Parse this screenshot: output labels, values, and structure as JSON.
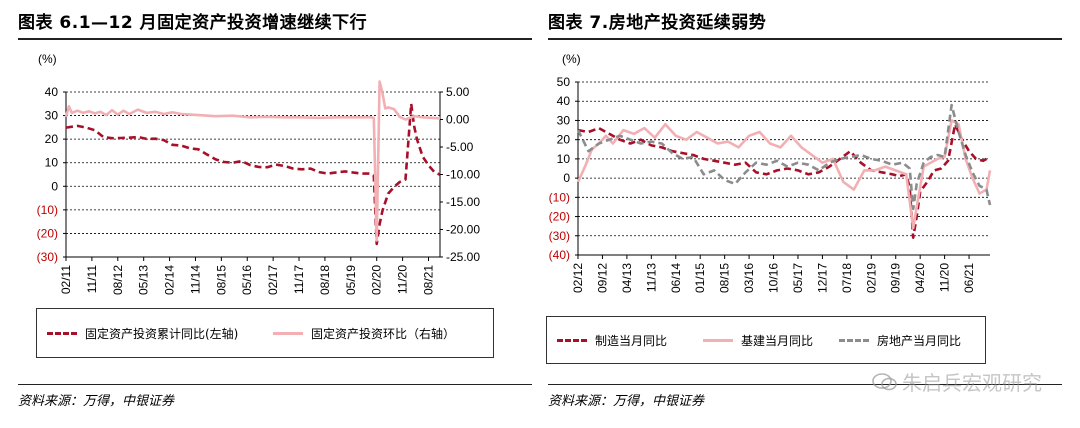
{
  "charts": {
    "left": {
      "title": "图表 6.1—12 月固定资产投资增速继续下行",
      "unit": "(%)",
      "left_axis_ticks": [
        "40",
        "30",
        "20",
        "10",
        "0",
        "(10)",
        "(20)",
        "(30)"
      ],
      "right_axis_ticks": [
        "5.00",
        "0.00",
        "-5.00",
        "-10.00",
        "-15.00",
        "-20.00",
        "-25.00"
      ],
      "x_ticks": [
        "02/11",
        "11/11",
        "08/12",
        "05/13",
        "02/14",
        "11/14",
        "08/15",
        "05/16",
        "02/17",
        "11/17",
        "08/18",
        "05/19",
        "02/20",
        "11/20",
        "08/21"
      ],
      "legend": {
        "cumulative": "固定资产投资累计同比(左轴)",
        "mom": "固定资产投资环比（右轴）"
      },
      "source": "资料来源：万得，中银证券"
    },
    "right": {
      "title": "图表 7.房地产投资延续弱势",
      "unit": "(%)",
      "left_axis_ticks": [
        "50",
        "40",
        "30",
        "20",
        "10",
        "0",
        "(10)",
        "(20)",
        "(30)",
        "(40)"
      ],
      "x_ticks": [
        "02/12",
        "09/12",
        "04/13",
        "11/13",
        "06/14",
        "01/15",
        "08/15",
        "03/16",
        "10/16",
        "05/17",
        "12/17",
        "07/18",
        "02/19",
        "09/19",
        "04/20",
        "11/20",
        "06/21"
      ],
      "legend": {
        "mfg": "制造当月同比",
        "infra": "基建当月同比",
        "realestate": "房地产当月同比"
      },
      "source": "资料来源：万得，中银证券"
    }
  },
  "watermark": "朱启兵宏观研究",
  "colors": {
    "dark_red": "#a8102a",
    "pink": "#f2b0b4",
    "gray": "#8c8c8c",
    "neg_label": "#c00000"
  },
  "chart_data": [
    {
      "type": "line",
      "title": "图表 6.1—12 月固定资产投资增速继续下行",
      "x_range": [
        "2011-02",
        "2021-12"
      ],
      "ylim_left": [
        -30,
        40
      ],
      "ylim_right": [
        -25,
        5
      ],
      "series": [
        {
          "name": "固定资产投资累计同比(左轴)",
          "axis": "left",
          "style": "dashed",
          "color": "#a8102a",
          "points": [
            [
              "2011-02",
              24.9
            ],
            [
              "2011-06",
              25.6
            ],
            [
              "2011-09",
              24.9
            ],
            [
              "2011-12",
              23.8
            ],
            [
              "2012-03",
              20.9
            ],
            [
              "2012-06",
              20.4
            ],
            [
              "2012-09",
              20.5
            ],
            [
              "2012-12",
              20.6
            ],
            [
              "2013-03",
              20.9
            ],
            [
              "2013-06",
              20.1
            ],
            [
              "2013-09",
              20.2
            ],
            [
              "2013-12",
              19.6
            ],
            [
              "2014-03",
              17.6
            ],
            [
              "2014-06",
              17.3
            ],
            [
              "2014-09",
              16.1
            ],
            [
              "2014-12",
              15.7
            ],
            [
              "2015-03",
              13.5
            ],
            [
              "2015-06",
              11.4
            ],
            [
              "2015-09",
              10.3
            ],
            [
              "2015-12",
              10.0
            ],
            [
              "2016-03",
              10.7
            ],
            [
              "2016-06",
              9.0
            ],
            [
              "2016-09",
              8.2
            ],
            [
              "2016-12",
              8.1
            ],
            [
              "2017-03",
              9.2
            ],
            [
              "2017-06",
              8.6
            ],
            [
              "2017-09",
              7.5
            ],
            [
              "2017-12",
              7.2
            ],
            [
              "2018-03",
              7.5
            ],
            [
              "2018-06",
              6.0
            ],
            [
              "2018-09",
              5.4
            ],
            [
              "2018-12",
              5.9
            ],
            [
              "2019-03",
              6.3
            ],
            [
              "2019-06",
              5.8
            ],
            [
              "2019-09",
              5.4
            ],
            [
              "2019-12",
              5.4
            ],
            [
              "2020-01",
              4.5
            ],
            [
              "2020-02",
              -24.5
            ],
            [
              "2020-03",
              -16.1
            ],
            [
              "2020-04",
              -10.3
            ],
            [
              "2020-06",
              -3.1
            ],
            [
              "2020-08",
              -0.3
            ],
            [
              "2020-10",
              1.8
            ],
            [
              "2020-12",
              2.9
            ],
            [
              "2021-02",
              35.0
            ],
            [
              "2021-03",
              25.6
            ],
            [
              "2021-04",
              19.9
            ],
            [
              "2021-06",
              12.6
            ],
            [
              "2021-08",
              8.9
            ],
            [
              "2021-10",
              6.1
            ],
            [
              "2021-12",
              4.9
            ]
          ]
        },
        {
          "name": "固定资产投资环比（右轴）",
          "axis": "right",
          "style": "solid",
          "color": "#f2b0b4",
          "points": [
            [
              "2011-02",
              0.5
            ],
            [
              "2011-03",
              2.4
            ],
            [
              "2011-04",
              1.2
            ],
            [
              "2011-06",
              1.6
            ],
            [
              "2011-08",
              1.2
            ],
            [
              "2011-10",
              1.5
            ],
            [
              "2011-12",
              1.1
            ],
            [
              "2012-02",
              1.4
            ],
            [
              "2012-04",
              0.8
            ],
            [
              "2012-06",
              1.7
            ],
            [
              "2012-08",
              0.9
            ],
            [
              "2012-10",
              1.6
            ],
            [
              "2012-12",
              1.0
            ],
            [
              "2013-03",
              1.8
            ],
            [
              "2013-06",
              1.2
            ],
            [
              "2013-09",
              1.4
            ],
            [
              "2013-12",
              1.0
            ],
            [
              "2014-03",
              1.3
            ],
            [
              "2014-06",
              1.0
            ],
            [
              "2014-09",
              0.9
            ],
            [
              "2014-12",
              0.8
            ],
            [
              "2015-06",
              0.6
            ],
            [
              "2015-12",
              0.7
            ],
            [
              "2016-06",
              0.4
            ],
            [
              "2016-12",
              0.5
            ],
            [
              "2017-06",
              0.4
            ],
            [
              "2017-12",
              0.4
            ],
            [
              "2018-06",
              0.3
            ],
            [
              "2018-12",
              0.4
            ],
            [
              "2019-06",
              0.4
            ],
            [
              "2019-12",
              0.4
            ],
            [
              "2020-01",
              0.3
            ],
            [
              "2020-02",
              -22.0
            ],
            [
              "2020-03",
              6.9
            ],
            [
              "2020-04",
              4.8
            ],
            [
              "2020-05",
              2.0
            ],
            [
              "2020-06",
              2.2
            ],
            [
              "2020-08",
              1.9
            ],
            [
              "2020-10",
              0.5
            ],
            [
              "2020-12",
              0.0
            ],
            [
              "2021-03",
              0.6
            ],
            [
              "2021-06",
              0.4
            ],
            [
              "2021-09",
              0.3
            ],
            [
              "2021-12",
              0.2
            ]
          ]
        }
      ]
    },
    {
      "type": "line",
      "title": "图表 7.房地产投资延续弱势",
      "x_range": [
        "2012-02",
        "2021-12"
      ],
      "ylim": [
        -40,
        50
      ],
      "series": [
        {
          "name": "制造当月同比",
          "style": "dashed",
          "color": "#a8102a",
          "points": [
            [
              "2012-02",
              25
            ],
            [
              "2012-05",
              24
            ],
            [
              "2012-08",
              26
            ],
            [
              "2012-11",
              23
            ],
            [
              "2013-02",
              20
            ],
            [
              "2013-05",
              18
            ],
            [
              "2013-08",
              20
            ],
            [
              "2013-11",
              17
            ],
            [
              "2014-02",
              16
            ],
            [
              "2014-05",
              14
            ],
            [
              "2014-08",
              13
            ],
            [
              "2014-11",
              12
            ],
            [
              "2015-02",
              10
            ],
            [
              "2015-05",
              9
            ],
            [
              "2015-08",
              8
            ],
            [
              "2015-11",
              7
            ],
            [
              "2016-02",
              8
            ],
            [
              "2016-05",
              3
            ],
            [
              "2016-08",
              2
            ],
            [
              "2016-11",
              4
            ],
            [
              "2017-02",
              5
            ],
            [
              "2017-05",
              4
            ],
            [
              "2017-08",
              2
            ],
            [
              "2017-11",
              3
            ],
            [
              "2018-02",
              6
            ],
            [
              "2018-05",
              10
            ],
            [
              "2018-08",
              14
            ],
            [
              "2018-11",
              8
            ],
            [
              "2019-02",
              4
            ],
            [
              "2019-05",
              3
            ],
            [
              "2019-08",
              2
            ],
            [
              "2019-10",
              1
            ],
            [
              "2019-12",
              2
            ],
            [
              "2020-01",
              -5
            ],
            [
              "2020-02",
              -31
            ],
            [
              "2020-03",
              -20
            ],
            [
              "2020-04",
              -7
            ],
            [
              "2020-06",
              -2
            ],
            [
              "2020-08",
              4
            ],
            [
              "2020-10",
              5
            ],
            [
              "2020-12",
              9
            ],
            [
              "2021-02",
              28
            ],
            [
              "2021-04",
              20
            ],
            [
              "2021-06",
              14
            ],
            [
              "2021-08",
              10
            ],
            [
              "2021-10",
              9
            ],
            [
              "2021-12",
              11
            ]
          ]
        },
        {
          "name": "基建当月同比",
          "style": "solid",
          "color": "#f2b0b4",
          "points": [
            [
              "2012-02",
              -2
            ],
            [
              "2012-04",
              6
            ],
            [
              "2012-06",
              15
            ],
            [
              "2012-08",
              18
            ],
            [
              "2012-10",
              22
            ],
            [
              "2012-12",
              18
            ],
            [
              "2013-03",
              25
            ],
            [
              "2013-06",
              23
            ],
            [
              "2013-09",
              26
            ],
            [
              "2013-12",
              21
            ],
            [
              "2014-03",
              28
            ],
            [
              "2014-06",
              22
            ],
            [
              "2014-09",
              20
            ],
            [
              "2014-12",
              24
            ],
            [
              "2015-03",
              21
            ],
            [
              "2015-06",
              18
            ],
            [
              "2015-09",
              19
            ],
            [
              "2015-12",
              16
            ],
            [
              "2016-03",
              22
            ],
            [
              "2016-06",
              24
            ],
            [
              "2016-09",
              18
            ],
            [
              "2016-12",
              16
            ],
            [
              "2017-03",
              22
            ],
            [
              "2017-06",
              16
            ],
            [
              "2017-09",
              12
            ],
            [
              "2017-12",
              8
            ],
            [
              "2018-03",
              10
            ],
            [
              "2018-06",
              -2
            ],
            [
              "2018-09",
              -6
            ],
            [
              "2018-12",
              4
            ],
            [
              "2019-03",
              4
            ],
            [
              "2019-06",
              6
            ],
            [
              "2019-09",
              4
            ],
            [
              "2019-12",
              2
            ],
            [
              "2020-02",
              -26
            ],
            [
              "2020-03",
              -15
            ],
            [
              "2020-05",
              6
            ],
            [
              "2020-07",
              8
            ],
            [
              "2020-09",
              10
            ],
            [
              "2020-11",
              11
            ],
            [
              "2021-01",
              30
            ],
            [
              "2021-03",
              28
            ],
            [
              "2021-05",
              10
            ],
            [
              "2021-07",
              0
            ],
            [
              "2021-09",
              -8
            ],
            [
              "2021-11",
              -6
            ],
            [
              "2021-12",
              4
            ]
          ]
        },
        {
          "name": "房地产当月同比",
          "style": "dashed",
          "color": "#8c8c8c",
          "points": [
            [
              "2012-02",
              25
            ],
            [
              "2012-05",
              14
            ],
            [
              "2012-08",
              18
            ],
            [
              "2012-11",
              20
            ],
            [
              "2013-02",
              22
            ],
            [
              "2013-05",
              20
            ],
            [
              "2013-08",
              18
            ],
            [
              "2013-11",
              19
            ],
            [
              "2014-02",
              18
            ],
            [
              "2014-05",
              13
            ],
            [
              "2014-08",
              10
            ],
            [
              "2014-11",
              11
            ],
            [
              "2015-02",
              2
            ],
            [
              "2015-05",
              4
            ],
            [
              "2015-08",
              -1
            ],
            [
              "2015-11",
              -3
            ],
            [
              "2016-02",
              3
            ],
            [
              "2016-05",
              8
            ],
            [
              "2016-08",
              7
            ],
            [
              "2016-11",
              9
            ],
            [
              "2017-02",
              6
            ],
            [
              "2017-05",
              8
            ],
            [
              "2017-08",
              7
            ],
            [
              "2017-11",
              4
            ],
            [
              "2018-02",
              8
            ],
            [
              "2018-05",
              10
            ],
            [
              "2018-08",
              11
            ],
            [
              "2018-11",
              12
            ],
            [
              "2019-02",
              10
            ],
            [
              "2019-05",
              9
            ],
            [
              "2019-08",
              7
            ],
            [
              "2019-11",
              8
            ],
            [
              "2020-01",
              5
            ],
            [
              "2020-02",
              -16
            ],
            [
              "2020-03",
              -3
            ],
            [
              "2020-05",
              8
            ],
            [
              "2020-07",
              11
            ],
            [
              "2020-09",
              12
            ],
            [
              "2020-11",
              11
            ],
            [
              "2021-01",
              38
            ],
            [
              "2021-03",
              24
            ],
            [
              "2021-05",
              12
            ],
            [
              "2021-07",
              3
            ],
            [
              "2021-09",
              -4
            ],
            [
              "2021-11",
              -6
            ],
            [
              "2021-12",
              -14
            ]
          ]
        }
      ]
    }
  ]
}
